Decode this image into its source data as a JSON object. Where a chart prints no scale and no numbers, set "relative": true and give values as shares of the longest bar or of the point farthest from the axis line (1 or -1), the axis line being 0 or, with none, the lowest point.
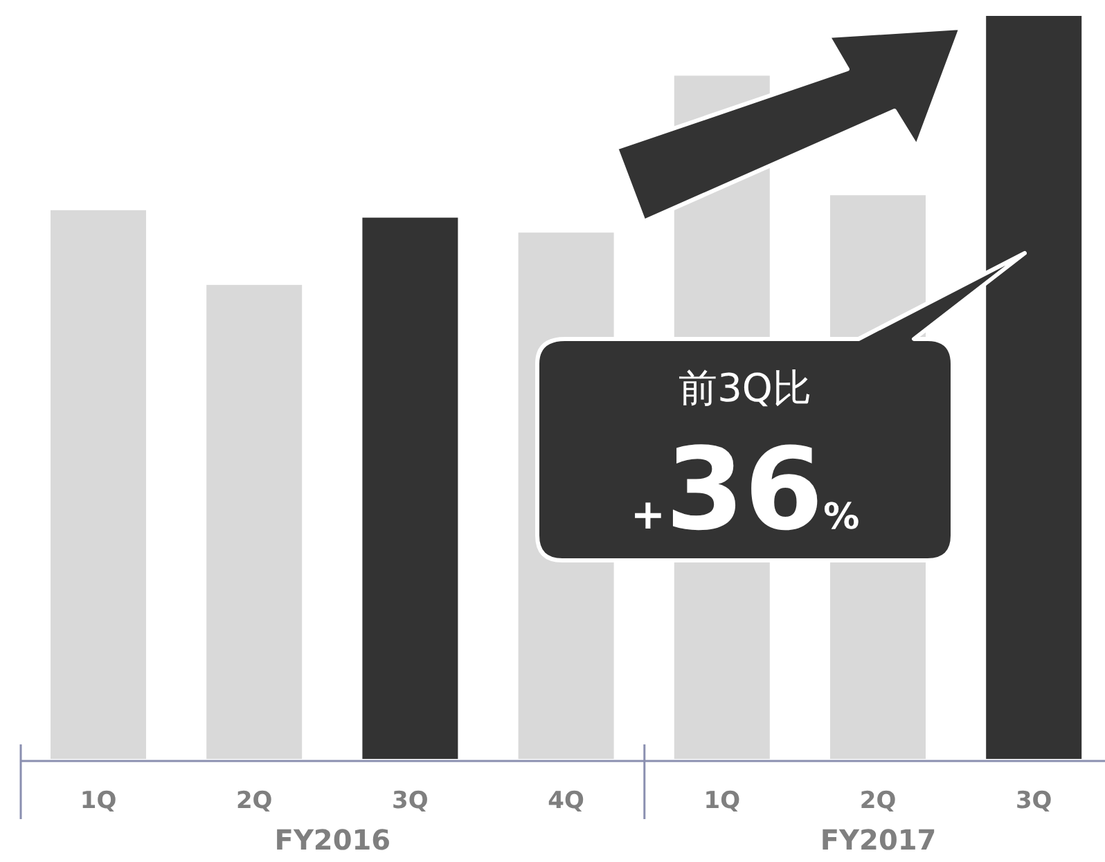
{
  "chart_data": {
    "type": "bar",
    "relative": true,
    "categories": [
      "1Q",
      "2Q",
      "3Q",
      "4Q",
      "1Q",
      "2Q",
      "3Q"
    ],
    "values": [
      0.74,
      0.64,
      0.73,
      0.71,
      0.92,
      0.76,
      1
    ],
    "colors": [
      "#d9d9d9",
      "#d9d9d9",
      "#333333",
      "#d9d9d9",
      "#d9d9d9",
      "#d9d9d9",
      "#333333"
    ],
    "annotations": [
      "FY2016",
      "FY2017",
      "前3Q比",
      "+36%"
    ]
  }
}
